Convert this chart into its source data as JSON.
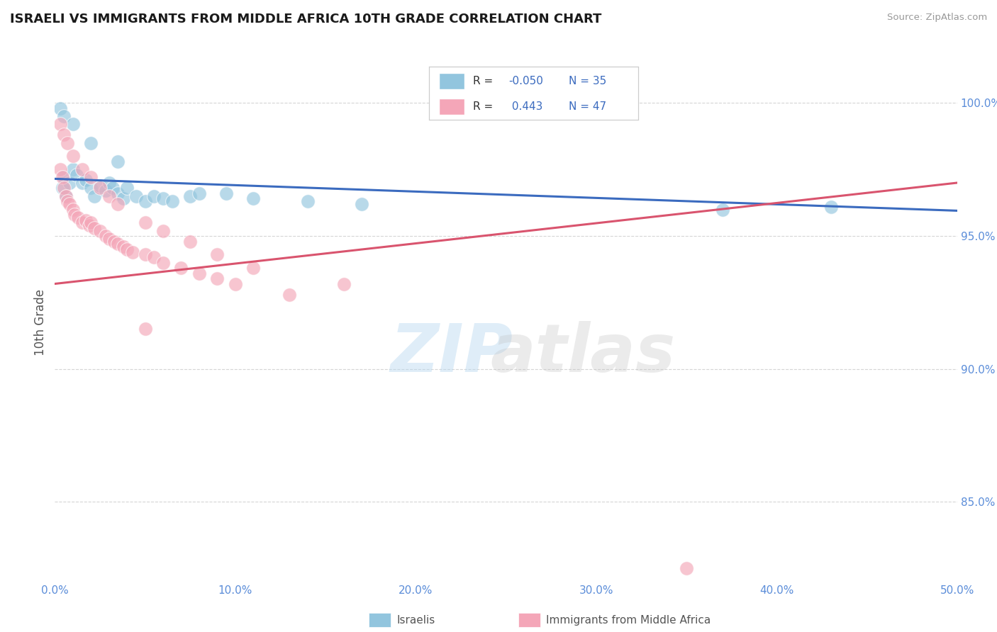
{
  "title": "ISRAELI VS IMMIGRANTS FROM MIDDLE AFRICA 10TH GRADE CORRELATION CHART",
  "source": "Source: ZipAtlas.com",
  "ylabel": "10th Grade",
  "xlim": [
    0.0,
    50.0
  ],
  "ylim": [
    82.0,
    101.5
  ],
  "yticks": [
    85.0,
    90.0,
    95.0,
    100.0
  ],
  "ytick_labels": [
    "85.0%",
    "90.0%",
    "95.0%",
    "100.0%"
  ],
  "xtick_values": [
    0,
    10,
    20,
    30,
    40,
    50
  ],
  "xtick_labels": [
    "0.0%",
    "10.0%",
    "20.0%",
    "30.0%",
    "40.0%",
    "50.0%"
  ],
  "legend_r1": "-0.050",
  "legend_n1": "35",
  "legend_r2": " 0.443",
  "legend_n2": "47",
  "blue_color": "#92c5de",
  "pink_color": "#f4a6b8",
  "line_blue": "#3b6bbf",
  "line_pink": "#d9546e",
  "israelis_x": [
    0.4,
    0.5,
    0.6,
    0.8,
    1.0,
    1.2,
    1.5,
    1.7,
    2.0,
    2.2,
    2.5,
    2.8,
    3.0,
    3.2,
    3.5,
    3.8,
    4.0,
    4.5,
    5.0,
    5.5,
    6.0,
    6.5,
    7.5,
    9.5,
    11.0,
    14.0,
    17.0,
    37.0,
    43.0,
    0.3,
    0.5,
    1.0,
    2.0,
    3.5,
    8.0
  ],
  "israelis_y": [
    96.8,
    97.2,
    96.5,
    97.0,
    97.5,
    97.3,
    97.0,
    97.1,
    96.8,
    96.5,
    96.9,
    96.7,
    97.0,
    96.8,
    96.6,
    96.4,
    96.8,
    96.5,
    96.3,
    96.5,
    96.4,
    96.3,
    96.5,
    96.6,
    96.4,
    96.3,
    96.2,
    96.0,
    96.1,
    99.8,
    99.5,
    99.2,
    98.5,
    97.8,
    96.6
  ],
  "immigrants_x": [
    0.3,
    0.4,
    0.5,
    0.6,
    0.7,
    0.8,
    1.0,
    1.1,
    1.3,
    1.5,
    1.7,
    1.9,
    2.0,
    2.2,
    2.5,
    2.8,
    3.0,
    3.3,
    3.5,
    3.8,
    4.0,
    4.3,
    5.0,
    5.5,
    6.0,
    7.0,
    8.0,
    9.0,
    10.0,
    13.0,
    0.3,
    0.5,
    0.7,
    1.0,
    1.5,
    2.0,
    2.5,
    3.0,
    3.5,
    5.0,
    6.0,
    7.5,
    9.0,
    11.0,
    16.0,
    5.0,
    35.0
  ],
  "immigrants_y": [
    97.5,
    97.2,
    96.8,
    96.5,
    96.3,
    96.2,
    96.0,
    95.8,
    95.7,
    95.5,
    95.6,
    95.4,
    95.5,
    95.3,
    95.2,
    95.0,
    94.9,
    94.8,
    94.7,
    94.6,
    94.5,
    94.4,
    94.3,
    94.2,
    94.0,
    93.8,
    93.6,
    93.4,
    93.2,
    92.8,
    99.2,
    98.8,
    98.5,
    98.0,
    97.5,
    97.2,
    96.8,
    96.5,
    96.2,
    95.5,
    95.2,
    94.8,
    94.3,
    93.8,
    93.2,
    91.5,
    82.5
  ],
  "blue_line_x": [
    0.0,
    50.0
  ],
  "blue_line_y": [
    97.15,
    95.95
  ],
  "pink_line_x": [
    0.0,
    50.0
  ],
  "pink_line_y": [
    93.2,
    97.0
  ],
  "background_color": "#ffffff",
  "grid_color": "#d5d5d5"
}
